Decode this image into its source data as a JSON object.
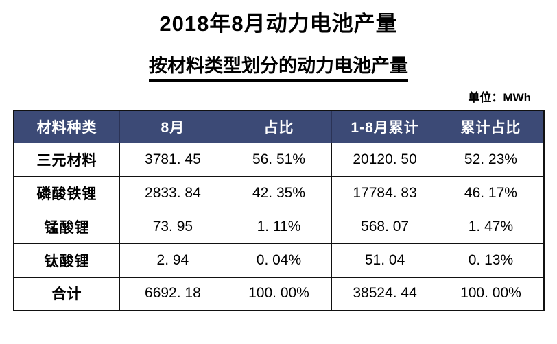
{
  "page": {
    "title": "2018年8月动力电池产量",
    "subtitle": "按材料类型划分的动力电池产量",
    "unit_label": "单位：MWh"
  },
  "colors": {
    "header_bg": "#3C4A76",
    "header_text": "#FFFFFF",
    "grid_border": "#111111"
  },
  "table": {
    "headers": [
      "材料种类",
      "8月",
      "占比",
      "1-8月累计",
      "累计占比"
    ],
    "rows": [
      [
        "三元材料",
        "3781. 45",
        "56. 51%",
        "20120. 50",
        "52. 23%"
      ],
      [
        "磷酸铁锂",
        "2833. 84",
        "42. 35%",
        "17784. 83",
        "46. 17%"
      ],
      [
        "锰酸锂",
        "73. 95",
        "1. 11%",
        "568. 07",
        "1. 47%"
      ],
      [
        "钛酸锂",
        "2. 94",
        "0. 04%",
        "51. 04",
        "0. 13%"
      ],
      [
        "合计",
        "6692. 18",
        "100. 00%",
        "38524. 44",
        "100. 00%"
      ]
    ]
  },
  "chart_data": {
    "type": "table",
    "title": "2018年8月动力电池产量",
    "subtitle": "按材料类型划分的动力电池产量",
    "unit": "MWh",
    "columns": [
      "材料种类",
      "8月",
      "占比",
      "1-8月累计",
      "累计占比"
    ],
    "rows": [
      {
        "material": "三元材料",
        "august": 3781.45,
        "share": "56.51%",
        "jan_aug_cumulative": 20120.5,
        "cumulative_share": "52.23%"
      },
      {
        "material": "磷酸铁锂",
        "august": 2833.84,
        "share": "42.35%",
        "jan_aug_cumulative": 17784.83,
        "cumulative_share": "46.17%"
      },
      {
        "material": "锰酸锂",
        "august": 73.95,
        "share": "1.11%",
        "jan_aug_cumulative": 568.07,
        "cumulative_share": "1.47%"
      },
      {
        "material": "钛酸锂",
        "august": 2.94,
        "share": "0.04%",
        "jan_aug_cumulative": 51.04,
        "cumulative_share": "0.13%"
      },
      {
        "material": "合计",
        "august": 6692.18,
        "share": "100.00%",
        "jan_aug_cumulative": 38524.44,
        "cumulative_share": "100.00%"
      }
    ]
  }
}
